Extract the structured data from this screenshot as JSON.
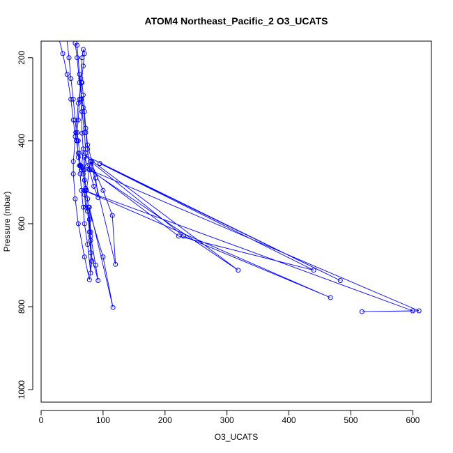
{
  "chart_data": {
    "type": "line",
    "title": "ATOM4 Northeast_Pacific_2 O3_UCATS",
    "xlabel": "O3_UCATS",
    "ylabel": "Pressure (mbar)",
    "xlim": [
      0,
      630
    ],
    "ylim": [
      1030,
      160
    ],
    "y_reversed": true,
    "xticks": [
      0,
      100,
      200,
      300,
      400,
      500,
      600
    ],
    "yticks": [
      200,
      400,
      600,
      800,
      1000
    ],
    "grid": false,
    "legend": "none",
    "series": [
      {
        "color": "#0000ff",
        "markers": "open-circle",
        "points": [
          [
            20,
            110
          ],
          [
            28,
            150
          ],
          [
            35,
            190
          ],
          [
            42,
            240
          ],
          [
            48,
            300
          ],
          [
            52,
            350
          ],
          [
            55,
            390
          ],
          [
            57,
            400
          ],
          [
            60,
            430
          ],
          [
            64,
            460
          ],
          [
            66,
            465
          ],
          [
            68,
            480
          ],
          [
            70,
            495
          ],
          [
            72,
            515
          ],
          [
            75,
            540
          ],
          [
            78,
            590
          ],
          [
            80,
            640
          ],
          [
            82,
            690
          ],
          [
            78,
            735
          ],
          [
            70,
            680
          ],
          [
            60,
            600
          ],
          [
            55,
            540
          ],
          [
            52,
            480
          ],
          [
            52,
            450
          ],
          [
            56,
            380
          ],
          [
            60,
            310
          ],
          [
            65,
            260
          ],
          [
            68,
            220
          ],
          [
            70,
            190
          ],
          [
            68,
            180
          ],
          [
            66,
            200
          ],
          [
            64,
            250
          ],
          [
            62,
            300
          ],
          [
            60,
            350
          ],
          [
            58,
            380
          ],
          [
            60,
            400
          ],
          [
            62,
            430
          ],
          [
            63,
            460
          ],
          [
            65,
            470
          ],
          [
            68,
            420
          ],
          [
            66,
            382
          ],
          [
            65,
            300
          ],
          [
            62,
            240
          ],
          [
            58,
            170
          ],
          [
            55,
            165
          ],
          [
            58,
            200
          ],
          [
            62,
            260
          ],
          [
            68,
            320
          ],
          [
            72,
            380
          ],
          [
            75,
            420
          ],
          [
            78,
            470
          ],
          [
            85,
            510
          ],
          [
            92,
            537
          ],
          [
            88,
            490
          ],
          [
            82,
            450
          ],
          [
            75,
            410
          ],
          [
            72,
            370
          ],
          [
            70,
            330
          ],
          [
            68,
            290
          ],
          [
            66,
            260
          ],
          [
            64,
            300
          ],
          [
            66,
            330
          ],
          [
            70,
            380
          ],
          [
            72,
            430
          ],
          [
            70,
            470
          ],
          [
            72,
            520
          ],
          [
            70,
            530
          ],
          [
            72,
            560
          ],
          [
            75,
            570
          ],
          [
            78,
            620
          ],
          [
            80,
            670
          ],
          [
            92,
            737
          ],
          [
            88,
            700
          ],
          [
            80,
            630
          ],
          [
            75,
            570
          ],
          [
            70,
            520
          ],
          [
            68,
            470
          ],
          [
            70,
            440
          ],
          [
            75,
            460
          ],
          [
            80,
            470
          ],
          [
            222,
            630
          ],
          [
            440,
            712
          ],
          [
            95,
            455
          ],
          [
            483,
            737
          ],
          [
            70,
            435
          ],
          [
            318,
            712
          ],
          [
            78,
            470
          ],
          [
            610,
            810
          ],
          [
            518,
            812
          ],
          [
            600,
            810
          ],
          [
            70,
            520
          ],
          [
            467,
            778
          ],
          [
            230,
            630
          ],
          [
            80,
            450
          ],
          [
            100,
            520
          ],
          [
            115,
            580
          ],
          [
            120,
            698
          ],
          [
            80,
            450
          ],
          [
            73,
            520
          ],
          [
            76,
            560
          ],
          [
            100,
            680
          ],
          [
            116,
            802
          ],
          [
            78,
            560
          ],
          [
            80,
            620
          ],
          [
            80,
            719
          ],
          [
            75,
            650
          ],
          [
            70,
            600
          ],
          [
            68,
            560
          ],
          [
            65,
            520
          ],
          [
            63,
            480
          ],
          [
            62,
            460
          ],
          [
            60,
            440
          ],
          [
            58,
            400
          ],
          [
            55,
            350
          ],
          [
            52,
            300
          ],
          [
            48,
            250
          ],
          [
            45,
            200
          ],
          [
            42,
            160
          ],
          [
            40,
            120
          ]
        ]
      }
    ]
  }
}
